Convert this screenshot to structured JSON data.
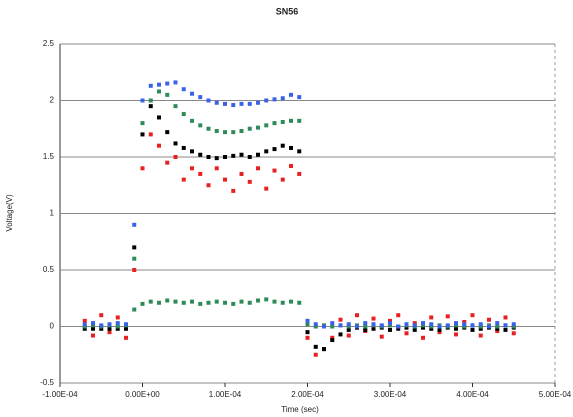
{
  "chart_data": {
    "type": "scatter",
    "title": "SN56",
    "x_label": "Time (sec)",
    "y_label": "Voltage(V)",
    "xlim": [
      -0.0001,
      0.0005
    ],
    "ylim": [
      -0.5,
      2.5
    ],
    "xticks": [
      {
        "value": -0.0001,
        "label": "-1.00E-04"
      },
      {
        "value": 0,
        "label": "0.00E+00"
      },
      {
        "value": 0.0001,
        "label": "1.00E-04"
      },
      {
        "value": 0.0002,
        "label": "2.00E-04"
      },
      {
        "value": 0.0003,
        "label": "3.00E-04"
      },
      {
        "value": 0.0004,
        "label": "4.00E-04"
      },
      {
        "value": 0.0005,
        "label": "5.00E-04"
      }
    ],
    "yticks": [
      -0.5,
      0,
      0.5,
      1,
      1.5,
      2,
      2.5
    ],
    "grid": true,
    "x": [
      -7e-05,
      -6e-05,
      -5e-05,
      -4e-05,
      -3e-05,
      -2e-05,
      -1e-05,
      0,
      1e-05,
      2e-05,
      3e-05,
      4e-05,
      5e-05,
      6e-05,
      7e-05,
      8e-05,
      9e-05,
      0.0001,
      0.00011,
      0.00012,
      0.00013,
      0.00014,
      0.00015,
      0.00016,
      0.00017,
      0.00018,
      0.00019,
      0.0002,
      0.00021,
      0.00022,
      0.00023,
      0.00024,
      0.00025,
      0.00026,
      0.00027,
      0.00028,
      0.00029,
      0.0003,
      0.00031,
      0.00032,
      0.00033,
      0.00034,
      0.00035,
      0.00036,
      0.00037,
      0.00038,
      0.00039,
      0.0004,
      0.00041,
      0.00042,
      0.00043,
      0.00044,
      0.00045
    ],
    "series": [
      {
        "color": "#e82020",
        "values": [
          0.05,
          -0.08,
          0.1,
          -0.05,
          0.08,
          -0.1,
          0.5,
          1.4,
          1.7,
          1.6,
          1.45,
          1.5,
          1.3,
          1.4,
          1.35,
          1.25,
          1.4,
          1.3,
          1.2,
          1.35,
          1.28,
          1.4,
          1.22,
          1.38,
          1.3,
          1.42,
          1.35,
          -0.1,
          -0.25,
          -0.2,
          -0.1,
          0.06,
          -0.08,
          0.1,
          -0.04,
          0.07,
          -0.09,
          0.05,
          0.1,
          -0.06,
          0.03,
          -0.1,
          0.08,
          -0.05,
          0.09,
          -0.07,
          0.04,
          0.1,
          -0.08,
          0.06,
          -0.04,
          0.08,
          -0.06
        ]
      },
      {
        "color": "#000000",
        "values": [
          -0.02,
          -0.02,
          -0.02,
          -0.02,
          -0.02,
          -0.02,
          0.7,
          1.7,
          1.95,
          1.85,
          1.72,
          1.62,
          1.58,
          1.55,
          1.52,
          1.5,
          1.49,
          1.5,
          1.51,
          1.52,
          1.5,
          1.52,
          1.55,
          1.57,
          1.6,
          1.58,
          1.55,
          -0.05,
          -0.18,
          -0.2,
          -0.12,
          -0.07,
          -0.03,
          -0.01,
          -0.03,
          -0.02,
          -0.01,
          -0.03,
          -0.02,
          -0.01,
          -0.03,
          -0.01,
          -0.02,
          -0.03,
          -0.01,
          -0.02,
          -0.01,
          -0.03,
          -0.02,
          -0.01,
          -0.02,
          -0.03,
          -0.01
        ]
      },
      {
        "color": "#2e8b57",
        "values": [
          0,
          0.01,
          0,
          0.01,
          0,
          0.01,
          0.6,
          1.8,
          2.0,
          2.08,
          2.05,
          1.95,
          1.88,
          1.82,
          1.78,
          1.75,
          1.73,
          1.72,
          1.72,
          1.73,
          1.75,
          1.76,
          1.78,
          1.8,
          1.81,
          1.82,
          1.82,
          0.02,
          0,
          0.01,
          0,
          0.01,
          0,
          0.01,
          0,
          0.01,
          0,
          0.01,
          0,
          0.01,
          0,
          0.01,
          0,
          0.01,
          0,
          0.01,
          0,
          0.01,
          0,
          0.01,
          0,
          0.01,
          0
        ]
      },
      {
        "color": "#2e8b57",
        "values": [
          null,
          null,
          null,
          null,
          null,
          null,
          0.15,
          0.2,
          0.22,
          0.21,
          0.23,
          0.22,
          0.21,
          0.22,
          0.2,
          0.21,
          0.22,
          0.21,
          0.2,
          0.22,
          0.21,
          0.23,
          0.24,
          0.22,
          0.21,
          0.22,
          0.21,
          null,
          null,
          null,
          null,
          null,
          null,
          null,
          null,
          null,
          null,
          null,
          null,
          null,
          null,
          null,
          null,
          null,
          null,
          null,
          null,
          null,
          null,
          null,
          null,
          null,
          null
        ]
      },
      {
        "color": "#3a62e8",
        "values": [
          0.02,
          0.03,
          0.01,
          0.02,
          0.03,
          0.02,
          0.9,
          2.0,
          2.13,
          2.14,
          2.15,
          2.16,
          2.1,
          2.06,
          2.03,
          2.0,
          1.98,
          1.97,
          1.96,
          1.97,
          1.97,
          1.98,
          2.0,
          2.01,
          2.02,
          2.05,
          2.03,
          0.05,
          0.02,
          0,
          0.03,
          0.01,
          0.02,
          0,
          0.03,
          0.02,
          0.01,
          0.03,
          0,
          0.02,
          0.01,
          0.03,
          0.02,
          0,
          0.01,
          0.03,
          0.02,
          0.01,
          0.02,
          0,
          0.03,
          0.01,
          0.02
        ]
      }
    ]
  }
}
